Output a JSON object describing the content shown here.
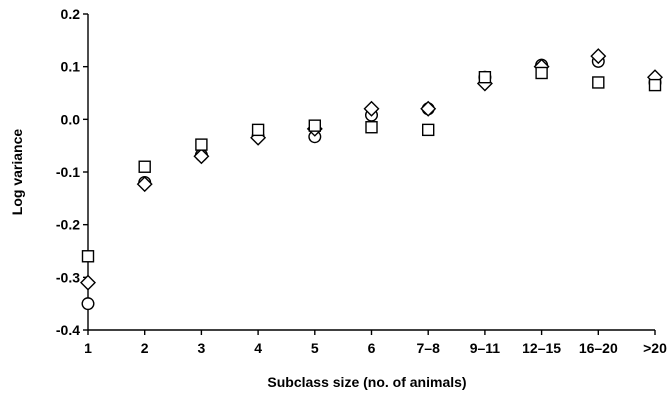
{
  "chart_data": {
    "type": "scatter",
    "title": "",
    "xlabel": "Subclass size (no. of animals)",
    "ylabel": "Log variance",
    "categories": [
      "1",
      "2",
      "3",
      "4",
      "5",
      "6",
      "7–8",
      "9–11",
      "12–15",
      "16–20",
      ">20"
    ],
    "ylim": [
      -0.4,
      0.2
    ],
    "yticks": [
      "-0.4",
      "-0.3",
      "-0.2",
      "-0.1",
      "0.0",
      "0.1",
      "0.2"
    ],
    "grid": false,
    "series": [
      {
        "marker": "square",
        "values": [
          -0.26,
          -0.09,
          -0.048,
          -0.02,
          -0.012,
          -0.015,
          -0.02,
          0.08,
          0.088,
          0.07,
          0.065
        ]
      },
      {
        "marker": "diamond",
        "values": [
          -0.31,
          -0.123,
          -0.07,
          -0.035,
          -0.018,
          0.02,
          0.02,
          0.068,
          0.1,
          0.12,
          0.08
        ]
      },
      {
        "marker": "circle",
        "values": [
          -0.35,
          -0.12,
          -0.068,
          -0.032,
          -0.033,
          0.008,
          0.02,
          0.08,
          0.103,
          0.11,
          0.07
        ]
      }
    ]
  }
}
